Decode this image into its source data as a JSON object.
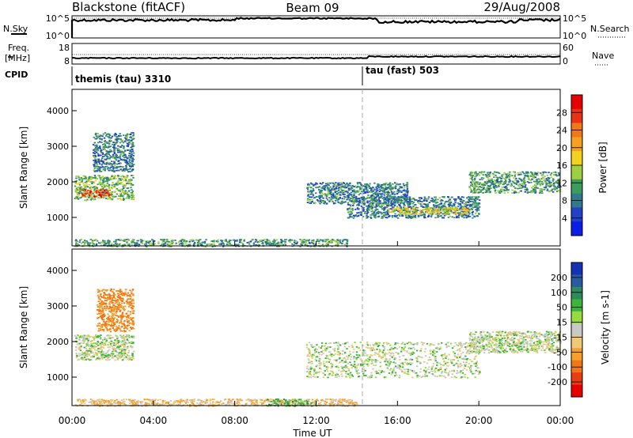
{
  "header": {
    "site": "Blackstone (fitACF)",
    "beam": "Beam 09",
    "date": "29/Aug/2008"
  },
  "top_panels": {
    "nsky": {
      "label": "N.Sky",
      "left_ticks": [
        "10^5",
        "10^0"
      ]
    },
    "nsearch": {
      "label": "N.Search",
      "right_ticks": [
        "10^5",
        "10^0"
      ]
    },
    "freq": {
      "label_line1": "Freq.",
      "label_line2": "[MHz]",
      "left_ticks": [
        "18",
        "8"
      ]
    },
    "nave": {
      "label": "Nave",
      "right_ticks": [
        "60",
        "0"
      ]
    },
    "cpid": {
      "label": "CPID",
      "segments": [
        {
          "text": "themis (tau) 3310",
          "start_hour": 0.0
        },
        {
          "text": "tau (fast) 503",
          "start_hour": 14.6
        }
      ]
    }
  },
  "time_axis": {
    "label": "Time UT",
    "ticks": [
      "00:00",
      "04:00",
      "08:00",
      "12:00",
      "16:00",
      "20:00",
      "00:00"
    ],
    "hours": [
      0,
      4,
      8,
      12,
      16,
      20,
      24
    ]
  },
  "power_panel": {
    "ylabel": "Slant Range [km]",
    "yticks": [
      1000,
      2000,
      3000,
      4000
    ],
    "ylim": [
      200,
      4600
    ],
    "colorbar_label": "Power [dB]",
    "colorbar_ticks": [
      "4",
      "8",
      "12",
      "16",
      "20",
      "24",
      "28"
    ],
    "colors": [
      "#0a1ee6",
      "#2340c8",
      "#2f7a8c",
      "#3c9c5a",
      "#9ecf40",
      "#f2d21e",
      "#f5a020",
      "#f07818",
      "#e83214",
      "#e60000"
    ]
  },
  "velocity_panel": {
    "ylabel": "Slant Range [km]",
    "yticks": [
      1000,
      2000,
      3000,
      4000
    ],
    "ylim": [
      200,
      4600
    ],
    "colorbar_label": "Velocity [m s-1]",
    "colorbar_ticks": [
      "200",
      "100",
      "50",
      "15",
      "-15",
      "-50",
      "-100",
      "-200"
    ],
    "colors": [
      "#1432b4",
      "#2a5aa0",
      "#2d8a5a",
      "#3cb43c",
      "#96dc3c",
      "#c8c8c8",
      "#f0c878",
      "#f5a02d",
      "#f07814",
      "#e83c14",
      "#e60000"
    ]
  },
  "chart_data": [
    {
      "type": "heatmap",
      "title": "Power",
      "xlabel": "Time UT",
      "ylabel": "Slant Range [km]",
      "xlim": [
        0,
        24
      ],
      "ylim": [
        200,
        4600
      ],
      "value_unit": "dB",
      "value_range": [
        0,
        30
      ],
      "regions": [
        {
          "t_start": 0.1,
          "t_end": 3.0,
          "range_start": 1500,
          "range_end": 2200,
          "power_dB": 12
        },
        {
          "t_start": 0.4,
          "t_end": 1.8,
          "range_start": 1600,
          "range_end": 1800,
          "power_dB": 25
        },
        {
          "t_start": 1.0,
          "t_end": 3.0,
          "range_start": 2300,
          "range_end": 3400,
          "power_dB": 8
        },
        {
          "t_start": 0.1,
          "t_end": 13.5,
          "range_start": 200,
          "range_end": 400,
          "power_dB": 10
        },
        {
          "t_start": 11.5,
          "t_end": 16.5,
          "range_start": 1400,
          "range_end": 2000,
          "power_dB": 8
        },
        {
          "t_start": 13.5,
          "t_end": 20.0,
          "range_start": 1000,
          "range_end": 1600,
          "power_dB": 8
        },
        {
          "t_start": 15.5,
          "t_end": 19.5,
          "range_start": 1100,
          "range_end": 1300,
          "power_dB": 16
        },
        {
          "t_start": 19.5,
          "t_end": 24.0,
          "range_start": 1700,
          "range_end": 2300,
          "power_dB": 10
        }
      ]
    },
    {
      "type": "heatmap",
      "title": "Velocity",
      "xlabel": "Time UT",
      "ylabel": "Slant Range [km]",
      "xlim": [
        0,
        24
      ],
      "ylim": [
        200,
        4600
      ],
      "value_unit": "m s-1",
      "value_range": [
        -200,
        200
      ],
      "regions": [
        {
          "t_start": 0.1,
          "t_end": 3.0,
          "range_start": 1500,
          "range_end": 2200,
          "velocity": 0
        },
        {
          "t_start": 1.2,
          "t_end": 3.0,
          "range_start": 2300,
          "range_end": 3500,
          "velocity": -80
        },
        {
          "t_start": 0.1,
          "t_end": 14.0,
          "range_start": 200,
          "range_end": 400,
          "velocity": -30
        },
        {
          "t_start": 9.5,
          "t_end": 12.0,
          "range_start": 200,
          "range_end": 400,
          "velocity": 20
        },
        {
          "t_start": 11.5,
          "t_end": 20.0,
          "range_start": 1000,
          "range_end": 2000,
          "velocity": 0
        },
        {
          "t_start": 19.5,
          "t_end": 24.0,
          "range_start": 1700,
          "range_end": 2300,
          "velocity": 0
        }
      ]
    }
  ]
}
